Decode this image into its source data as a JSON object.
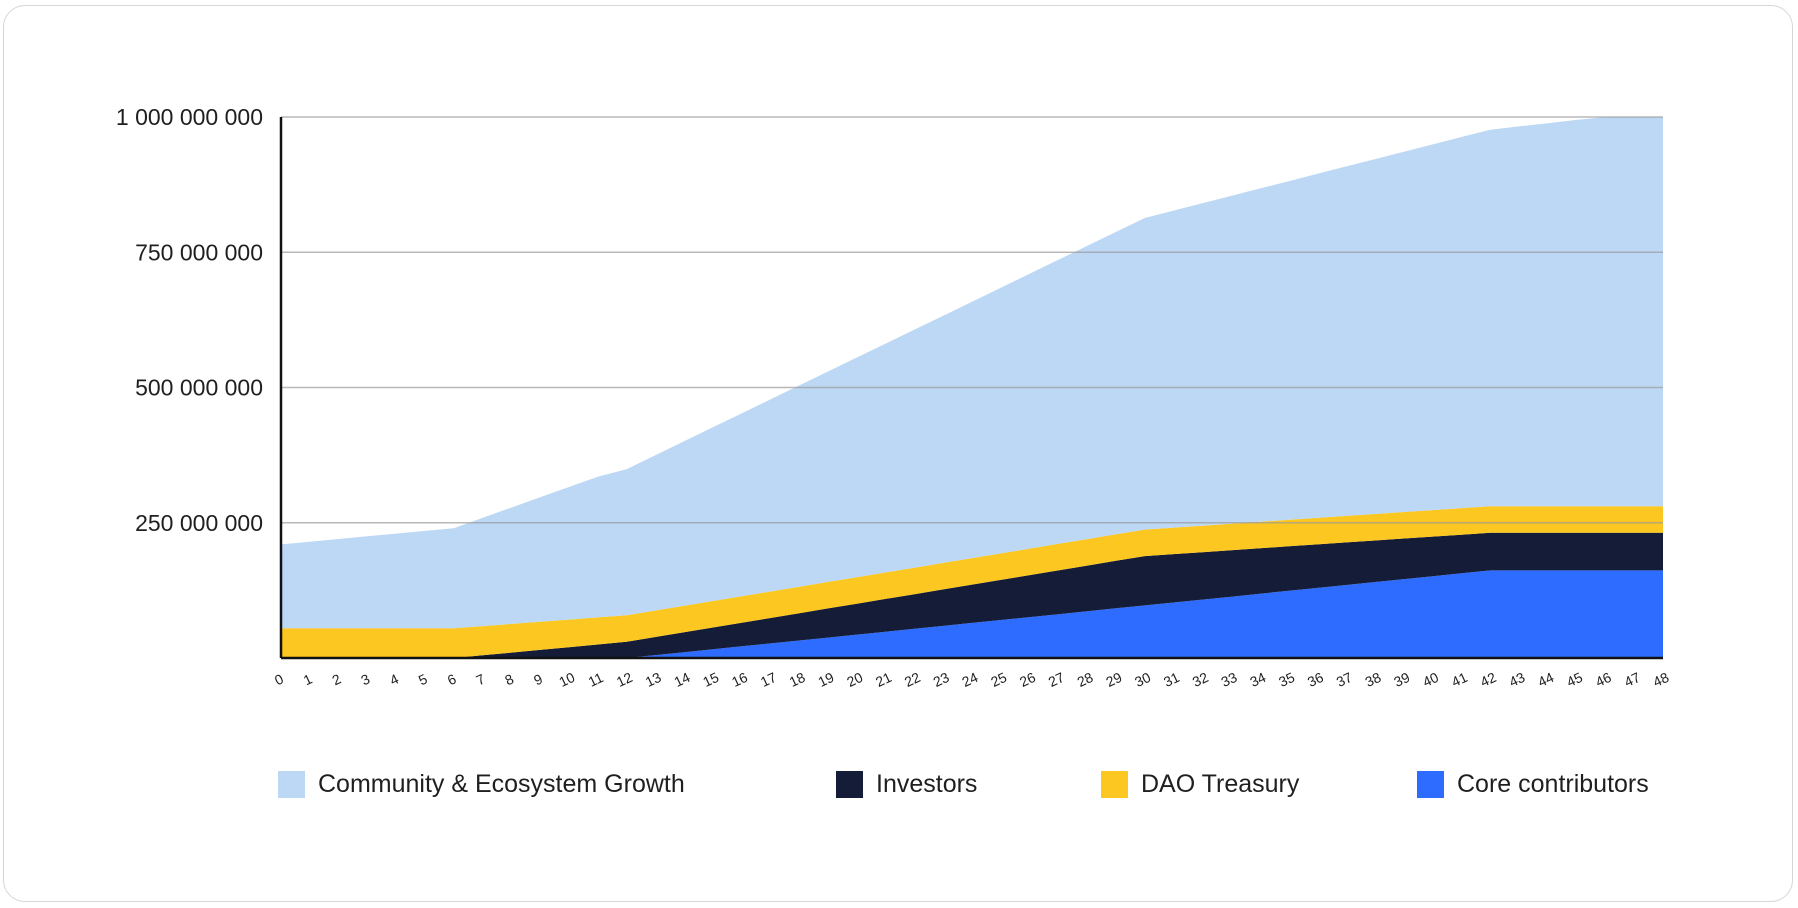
{
  "chart_data": {
    "type": "area",
    "stacked": true,
    "title": "",
    "xlabel": "",
    "ylabel": "",
    "x": [
      0,
      1,
      2,
      3,
      4,
      5,
      6,
      7,
      8,
      9,
      10,
      11,
      12,
      13,
      14,
      15,
      16,
      17,
      18,
      19,
      20,
      21,
      22,
      23,
      24,
      25,
      26,
      27,
      28,
      29,
      30,
      31,
      32,
      33,
      34,
      35,
      36,
      37,
      38,
      39,
      40,
      41,
      42,
      43,
      44,
      45,
      46,
      47,
      48
    ],
    "ylim": [
      0,
      1000000000
    ],
    "yticks": [
      250000000,
      500000000,
      750000000,
      1000000000
    ],
    "ytick_labels": [
      "250 000 000",
      "500 000 000",
      "750 000 000",
      "1 000 000 000"
    ],
    "grid": true,
    "legend_position": "bottom",
    "series": [
      {
        "name": "Core contributors",
        "color": "#2e6cff",
        "values": [
          0,
          0,
          0,
          0,
          0,
          0,
          0,
          0,
          0,
          0,
          0,
          0,
          0,
          5400000,
          10800000,
          16200000,
          21600000,
          27000000,
          32400000,
          37800000,
          43200000,
          48600000,
          54000000,
          59400000,
          64800000,
          70200000,
          75600000,
          81000000,
          86400000,
          91800000,
          97200000,
          102600000,
          108000000,
          113400000,
          118800000,
          124200000,
          129600000,
          135000000,
          140400000,
          145800000,
          151200000,
          156600000,
          162000000,
          162000000,
          162000000,
          162000000,
          162000000,
          162000000,
          162000000
        ]
      },
      {
        "name": "Investors",
        "color": "#141c38",
        "values": [
          0,
          0,
          0,
          0,
          0,
          0,
          0,
          5000000,
          10000000,
          15000000,
          20000000,
          25000000,
          30000000,
          33400000,
          36800000,
          40200000,
          43600000,
          47000000,
          50400000,
          53800000,
          57200000,
          60600000,
          64000000,
          67400000,
          70800000,
          74200000,
          77600000,
          81000000,
          84400000,
          87800000,
          91200000,
          89400000,
          87600000,
          85800000,
          84000000,
          82200000,
          80400000,
          78600000,
          76800000,
          75000000,
          73200000,
          71400000,
          69600000,
          69600000,
          69600000,
          69600000,
          69600000,
          69600000,
          69600000
        ]
      },
      {
        "name": "DAO Treasury",
        "color": "#fcc720",
        "values": [
          55000000,
          55000000,
          55000000,
          55000000,
          55000000,
          55000000,
          55000000,
          54000000,
          53000000,
          52000000,
          51000000,
          50000000,
          49000000,
          49000000,
          49000000,
          49000000,
          49000000,
          49000000,
          49000000,
          49000000,
          49000000,
          49000000,
          49000000,
          49000000,
          49000000,
          49000000,
          49000000,
          49000000,
          49000000,
          49000000,
          49000000,
          49000000,
          49000000,
          49000000,
          49000000,
          49000000,
          49000000,
          49000000,
          49000000,
          49000000,
          49000000,
          49000000,
          49000000,
          49000000,
          49000000,
          49000000,
          49000000,
          49000000,
          49000000
        ]
      },
      {
        "name": "Community & Ecosystem Growth",
        "color": "#bcd8f5",
        "values": [
          155000000,
          160000000,
          165000000,
          170000000,
          175000000,
          180000000,
          185000000,
          200000000,
          215000000,
          230000000,
          245000000,
          260000000,
          270000000,
          287000000,
          304000000,
          321000000,
          338000000,
          355000000,
          372000000,
          389000000,
          406000000,
          423000000,
          440000000,
          457000000,
          474000000,
          491000000,
          508000000,
          525000000,
          542000000,
          559000000,
          576000000,
          586000000,
          596000000,
          606000000,
          616000000,
          626000000,
          636000000,
          646000000,
          656000000,
          666000000,
          676000000,
          686000000,
          696000000,
          702000000,
          708000000,
          714000000,
          720000000,
          726000000,
          732000000
        ]
      }
    ],
    "stack_totals": [
      210000000,
      215000000,
      220000000,
      225000000,
      230000000,
      235000000,
      240000000,
      259000000,
      278000000,
      297000000,
      316000000,
      335000000,
      349000000,
      374800000,
      400600000,
      426400000,
      452200000,
      478000000,
      503800000,
      529600000,
      555400000,
      581200000,
      607000000,
      632800000,
      658600000,
      684400000,
      710200000,
      736000000,
      761800000,
      787600000,
      813400000,
      827000000,
      840600000,
      854200000,
      867800000,
      881400000,
      895000000,
      908600000,
      922200000,
      935800000,
      949400000,
      963000000,
      976600000,
      982600000,
      988600000,
      994600000,
      1000600000,
      1006600000,
      1012600000
    ]
  },
  "legend": [
    {
      "label": "Community & Ecosystem Growth",
      "color": "#bcd8f5"
    },
    {
      "label": "Investors",
      "color": "#141c38"
    },
    {
      "label": "DAO Treasury",
      "color": "#fcc720"
    },
    {
      "label": "Core contributors",
      "color": "#2e6cff"
    }
  ]
}
